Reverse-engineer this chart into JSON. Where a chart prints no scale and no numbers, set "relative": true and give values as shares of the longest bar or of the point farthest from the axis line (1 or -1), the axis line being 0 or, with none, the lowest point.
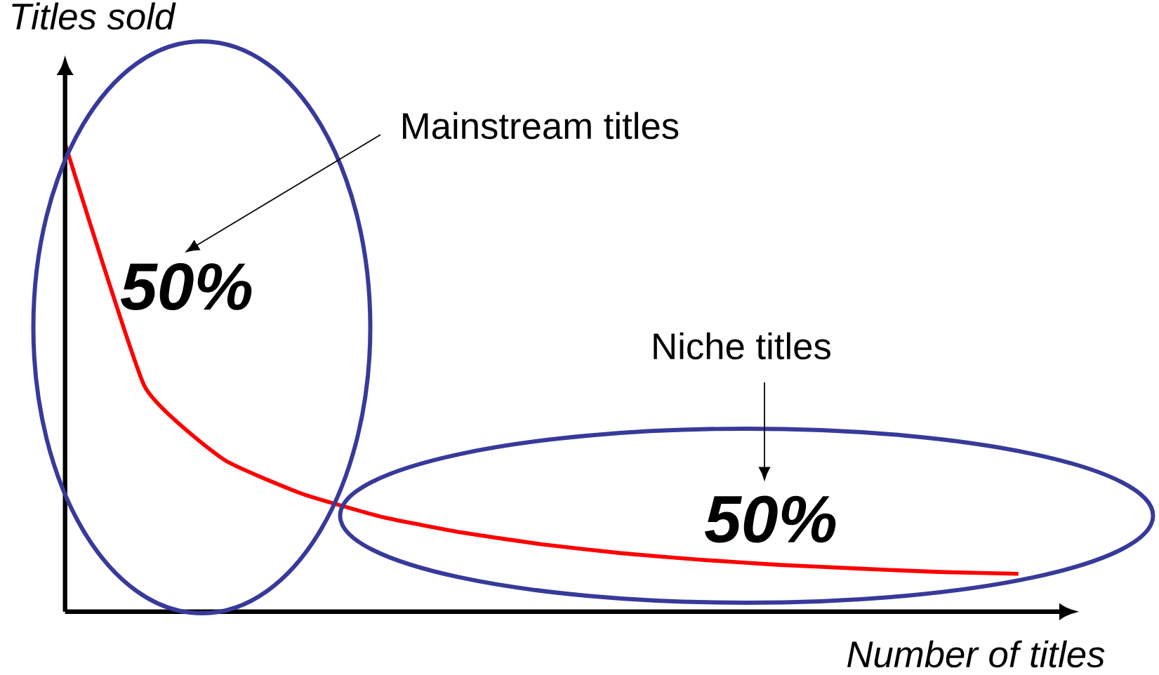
{
  "chart_data": {
    "type": "line",
    "relative": true,
    "xlabel": "Number of titles",
    "ylabel": "Titles sold",
    "categories": [
      null,
      null,
      null,
      null,
      null,
      null,
      null,
      null,
      null,
      null,
      null,
      null,
      null
    ],
    "values": [
      1,
      0.482,
      0.325,
      0.251,
      0.202,
      0.169,
      0.144,
      0.125,
      0.111,
      0.1,
      0.092,
      0.085,
      0.081
    ],
    "color": "#ff0000",
    "annotations": [
      "Mainstream titles",
      "50%",
      "Niche titles",
      "50%"
    ]
  }
}
